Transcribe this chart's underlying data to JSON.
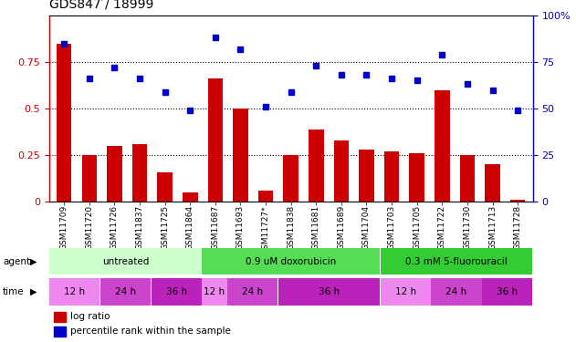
{
  "title": "GDS847 / 18999",
  "samples": [
    "GSM11709",
    "GSM11720",
    "GSM11726",
    "GSM11837",
    "GSM11725",
    "GSM11864",
    "GSM11687",
    "GSM11693",
    "GSM11727*",
    "GSM11838",
    "GSM11681",
    "GSM11689",
    "GSM11704",
    "GSM11703",
    "GSM11705",
    "GSM11722",
    "GSM11730",
    "GSM11713",
    "GSM11728"
  ],
  "log_ratio": [
    0.85,
    0.25,
    0.3,
    0.31,
    0.16,
    0.05,
    0.66,
    0.5,
    0.06,
    0.25,
    0.39,
    0.33,
    0.28,
    0.27,
    0.26,
    0.6,
    0.25,
    0.2,
    0.01
  ],
  "percentile_rank": [
    85,
    66,
    72,
    66,
    59,
    49,
    88,
    82,
    51,
    59,
    73,
    68,
    68,
    66,
    65,
    79,
    63,
    60,
    49
  ],
  "bar_color": "#cc0000",
  "dot_color": "#0000cc",
  "agent_groups": [
    {
      "label": "untreated",
      "start": 0,
      "end": 6,
      "color": "#ccffcc"
    },
    {
      "label": "0.9 uM doxorubicin",
      "start": 6,
      "end": 13,
      "color": "#55dd55"
    },
    {
      "label": "0.3 mM 5-fluorouracil",
      "start": 13,
      "end": 19,
      "color": "#33cc33"
    }
  ],
  "time_groups": [
    {
      "label": "12 h",
      "start": 0,
      "end": 2,
      "color": "#ee88ee"
    },
    {
      "label": "24 h",
      "start": 2,
      "end": 4,
      "color": "#cc44cc"
    },
    {
      "label": "36 h",
      "start": 4,
      "end": 6,
      "color": "#bb22bb"
    },
    {
      "label": "12 h",
      "start": 6,
      "end": 7,
      "color": "#ee88ee"
    },
    {
      "label": "24 h",
      "start": 7,
      "end": 9,
      "color": "#cc44cc"
    },
    {
      "label": "36 h",
      "start": 9,
      "end": 13,
      "color": "#bb22bb"
    },
    {
      "label": "12 h",
      "start": 13,
      "end": 15,
      "color": "#ee88ee"
    },
    {
      "label": "24 h",
      "start": 15,
      "end": 17,
      "color": "#cc44cc"
    },
    {
      "label": "36 h",
      "start": 17,
      "end": 19,
      "color": "#bb22bb"
    }
  ],
  "ylim_left": [
    0,
    1.0
  ],
  "ylim_right": [
    0,
    100
  ],
  "yticks_left": [
    0,
    0.25,
    0.5,
    0.75
  ],
  "yticks_right": [
    0,
    25,
    50,
    75,
    100
  ],
  "legend_red": "log ratio",
  "legend_blue": "percentile rank within the sample"
}
